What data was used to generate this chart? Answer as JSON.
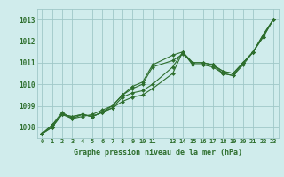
{
  "title": "Graphe pression niveau de la mer (hPa)",
  "bg_color": "#d0ecec",
  "grid_color": "#a0c8c8",
  "line_color": "#2d6e2d",
  "marker_color": "#2d6e2d",
  "xlim": [
    -0.5,
    23.5
  ],
  "ylim": [
    1007.5,
    1013.5
  ],
  "xticks": [
    0,
    1,
    2,
    3,
    4,
    5,
    6,
    7,
    8,
    9,
    10,
    11,
    13,
    14,
    15,
    16,
    17,
    18,
    19,
    20,
    21,
    22,
    23
  ],
  "yticks": [
    1008,
    1009,
    1010,
    1011,
    1012,
    1013
  ],
  "series": [
    [
      1007.7,
      1008.0,
      1008.6,
      1008.5,
      1008.6,
      1008.5,
      1008.7,
      1008.9,
      1009.4,
      1009.6,
      1009.7,
      1010.0,
      1010.8,
      1011.5,
      1010.9,
      1010.9,
      1010.9,
      1010.5,
      1010.4,
      1011.0,
      1011.5,
      1012.3,
      1013.0
    ],
    [
      1007.7,
      1008.0,
      1008.6,
      1008.5,
      1008.6,
      1008.5,
      1008.7,
      1008.9,
      1009.2,
      1009.4,
      1009.5,
      1009.8,
      1010.5,
      1011.5,
      1010.9,
      1010.9,
      1010.8,
      1010.5,
      1010.4,
      1010.9,
      1011.5,
      1012.3,
      1013.0
    ],
    [
      1007.7,
      1008.1,
      1008.6,
      1008.4,
      1008.6,
      1008.5,
      1008.7,
      1009.0,
      1009.5,
      1009.8,
      1010.0,
      1010.8,
      1011.1,
      1011.4,
      1011.0,
      1011.0,
      1010.9,
      1010.6,
      1010.5,
      1011.0,
      1011.5,
      1012.2,
      1013.0
    ],
    [
      1007.7,
      1008.1,
      1008.7,
      1008.4,
      1008.5,
      1008.6,
      1008.8,
      1009.0,
      1009.5,
      1009.9,
      1010.1,
      1010.9,
      1011.35,
      1011.5,
      1011.0,
      1011.0,
      1010.9,
      1010.6,
      1010.5,
      1011.0,
      1011.5,
      1012.2,
      1013.0
    ]
  ],
  "hours": [
    0,
    1,
    2,
    3,
    4,
    5,
    6,
    7,
    8,
    9,
    10,
    11,
    13,
    14,
    15,
    16,
    17,
    18,
    19,
    20,
    21,
    22,
    23
  ]
}
